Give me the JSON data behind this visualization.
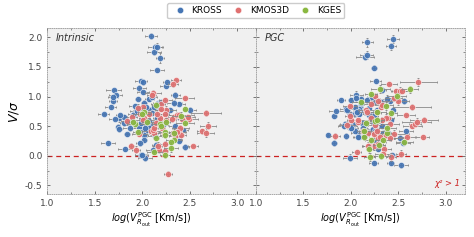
{
  "legend_labels": [
    "KROSS",
    "KMOS3D",
    "KGES"
  ],
  "panel_labels": [
    "Intrinsic",
    "PGC"
  ],
  "xlim": [
    1.0,
    3.2
  ],
  "ylim": [
    -0.65,
    2.15
  ],
  "xticks": [
    1.0,
    1.5,
    2.0,
    2.5,
    3.0
  ],
  "yticks": [
    -0.5,
    0.0,
    0.5,
    1.0,
    1.5,
    2.0
  ],
  "dashed_color": "#cc2222",
  "bg_color": "#f0f0f0",
  "kross_color": "#4575b4",
  "kmos3d_color": "#e07070",
  "kges_color": "#8ab840",
  "annotation": "χ² > 1",
  "marker_size": 4.5,
  "elinewidth": 0.6,
  "ecolor": "#888888",
  "seeds": [
    7,
    21,
    55,
    13,
    38,
    91
  ],
  "n_kross": 85,
  "n_kmos3d": 48,
  "n_kges": 22
}
